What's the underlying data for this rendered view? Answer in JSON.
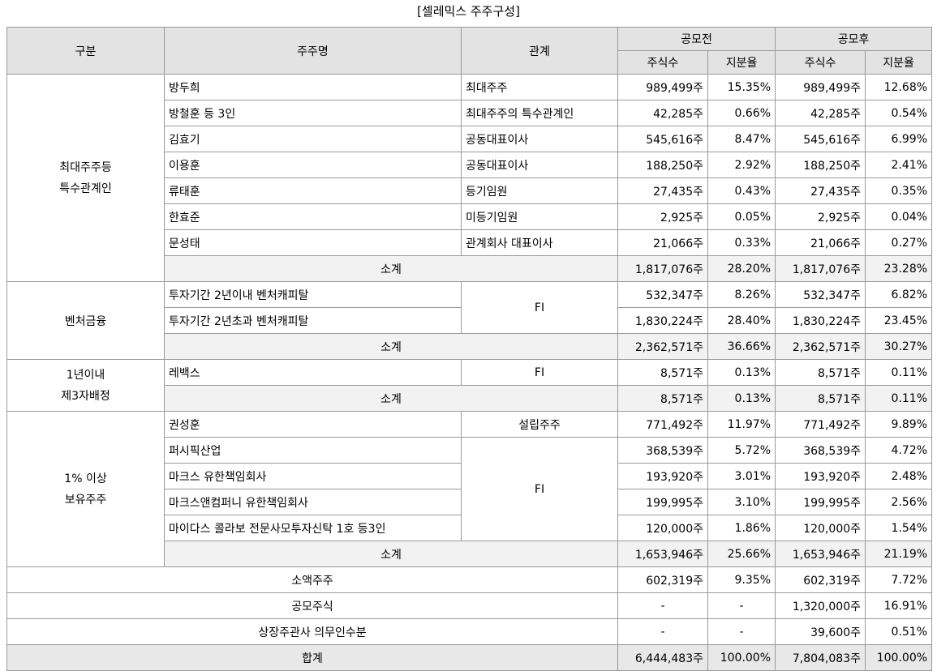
{
  "caption": "[셀레믹스 주주구성]",
  "headers": {
    "category": "구분",
    "shareholder": "주주명",
    "relation": "관계",
    "before": "공모전",
    "after": "공모후",
    "shares": "주식수",
    "ratio": "지분율"
  },
  "groups": {
    "major": {
      "label_l1": "최대주주등",
      "label_l2": "특수관계인",
      "rows": [
        {
          "name": "방두희",
          "relation": "최대주주",
          "pre_shares": "989,499주",
          "pre_ratio": "15.35%",
          "post_shares": "989,499주",
          "post_ratio": "12.68%"
        },
        {
          "name": "방철훈 등 3인",
          "relation": "최대주주의 특수관계인",
          "pre_shares": "42,285주",
          "pre_ratio": "0.66%",
          "post_shares": "42,285주",
          "post_ratio": "0.54%"
        },
        {
          "name": "김효기",
          "relation": "공동대표이사",
          "pre_shares": "545,616주",
          "pre_ratio": "8.47%",
          "post_shares": "545,616주",
          "post_ratio": "6.99%"
        },
        {
          "name": "이용훈",
          "relation": "공동대표이사",
          "pre_shares": "188,250주",
          "pre_ratio": "2.92%",
          "post_shares": "188,250주",
          "post_ratio": "2.41%"
        },
        {
          "name": "류태훈",
          "relation": "등기임원",
          "pre_shares": "27,435주",
          "pre_ratio": "0.43%",
          "post_shares": "27,435주",
          "post_ratio": "0.35%"
        },
        {
          "name": "한효준",
          "relation": "미등기임원",
          "pre_shares": "2,925주",
          "pre_ratio": "0.05%",
          "post_shares": "2,925주",
          "post_ratio": "0.04%"
        },
        {
          "name": "문성태",
          "relation": "관계회사 대표이사",
          "pre_shares": "21,066주",
          "pre_ratio": "0.33%",
          "post_shares": "21,066주",
          "post_ratio": "0.27%"
        }
      ],
      "subtotal": {
        "label": "소계",
        "pre_shares": "1,817,076주",
        "pre_ratio": "28.20%",
        "post_shares": "1,817,076주",
        "post_ratio": "23.28%"
      }
    },
    "venture": {
      "label": "벤처금융",
      "relation": "FI",
      "rows": [
        {
          "name": "투자기간 2년이내 벤처캐피탈",
          "pre_shares": "532,347주",
          "pre_ratio": "8.26%",
          "post_shares": "532,347주",
          "post_ratio": "6.82%"
        },
        {
          "name": "투자기간 2년초과 벤처캐피탈",
          "pre_shares": "1,830,224주",
          "pre_ratio": "28.40%",
          "post_shares": "1,830,224주",
          "post_ratio": "23.45%"
        }
      ],
      "subtotal": {
        "label": "소계",
        "pre_shares": "2,362,571주",
        "pre_ratio": "36.66%",
        "post_shares": "2,362,571주",
        "post_ratio": "30.27%"
      }
    },
    "third_party": {
      "label_l1": "1년이내",
      "label_l2": "제3자배정",
      "rows": [
        {
          "name": "레백스",
          "relation": "FI",
          "pre_shares": "8,571주",
          "pre_ratio": "0.13%",
          "post_shares": "8,571주",
          "post_ratio": "0.11%"
        }
      ],
      "subtotal": {
        "label": "소계",
        "pre_shares": "8,571주",
        "pre_ratio": "0.13%",
        "post_shares": "8,571주",
        "post_ratio": "0.11%"
      }
    },
    "over1": {
      "label_l1": "1% 이상",
      "label_l2": "보유주주",
      "fi_relation": "FI",
      "rows": [
        {
          "name": "권성훈",
          "relation": "설립주주",
          "pre_shares": "771,492주",
          "pre_ratio": "11.97%",
          "post_shares": "771,492주",
          "post_ratio": "9.89%"
        },
        {
          "name": "퍼시픽산업",
          "pre_shares": "368,539주",
          "pre_ratio": "5.72%",
          "post_shares": "368,539주",
          "post_ratio": "4.72%"
        },
        {
          "name": "마크스 유한책임회사",
          "pre_shares": "193,920주",
          "pre_ratio": "3.01%",
          "post_shares": "193,920주",
          "post_ratio": "2.48%"
        },
        {
          "name": "마크스앤컴퍼니 유한책임회사",
          "pre_shares": "199,995주",
          "pre_ratio": "3.10%",
          "post_shares": "199,995주",
          "post_ratio": "2.56%"
        },
        {
          "name": "마이다스 콜라보 전문사모투자신탁 1호 등3인",
          "pre_shares": "120,000주",
          "pre_ratio": "1.86%",
          "post_shares": "120,000주",
          "post_ratio": "1.54%"
        }
      ],
      "subtotal": {
        "label": "소계",
        "pre_shares": "1,653,946주",
        "pre_ratio": "25.66%",
        "post_shares": "1,653,946주",
        "post_ratio": "21.19%"
      }
    }
  },
  "others": [
    {
      "label": "소액주주",
      "pre_shares": "602,319주",
      "pre_ratio": "9.35%",
      "post_shares": "602,319주",
      "post_ratio": "7.72%"
    },
    {
      "label": "공모주식",
      "pre_shares": "-",
      "pre_ratio": "-",
      "post_shares": "1,320,000주",
      "post_ratio": "16.91%"
    },
    {
      "label": "상장주관사 의무인수분",
      "pre_shares": "-",
      "pre_ratio": "-",
      "post_shares": "39,600주",
      "post_ratio": "0.51%"
    }
  ],
  "total": {
    "label": "합계",
    "pre_shares": "6,444,483주",
    "pre_ratio": "100.00%",
    "post_shares": "7,804,083주",
    "post_ratio": "100.00%"
  }
}
